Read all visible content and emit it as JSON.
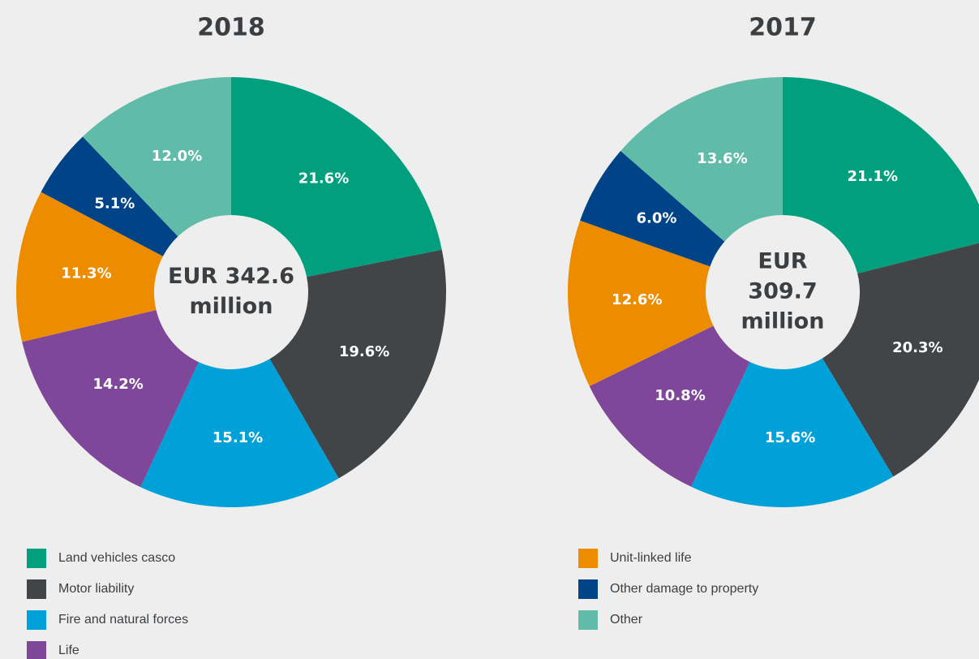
{
  "chart_data": [
    {
      "type": "donut",
      "title": "2018",
      "center_label": [
        "EUR 342.6",
        "million"
      ],
      "categories": [
        "Land vehicles casco",
        "Motor liability",
        "Fire and natural forces",
        "Life",
        "Unit-linked life",
        "Other damage to property",
        "Other"
      ],
      "values": [
        21.6,
        19.6,
        15.1,
        14.2,
        11.3,
        5.1,
        12.0
      ],
      "value_labels": [
        "21.6%",
        "19.6%",
        "15.1%",
        "14.2%",
        "11.3%",
        "5.1%",
        "12.0%"
      ],
      "colors": [
        "#00a07e",
        "#424548",
        "#00a0d8",
        "#7f479a",
        "#ee8c00",
        "#004487",
        "#60bba8"
      ]
    },
    {
      "type": "donut",
      "title": "2017",
      "center_label": [
        "EUR",
        "309.7",
        "million"
      ],
      "categories": [
        "Land vehicles casco",
        "Motor liability",
        "Fire and natural forces",
        "Life",
        "Unit-linked life",
        "Other damage to property",
        "Other"
      ],
      "values": [
        21.1,
        20.3,
        15.6,
        10.8,
        12.6,
        6.0,
        13.6
      ],
      "value_labels": [
        "21.1%",
        "20.3%",
        "15.6%",
        "10.8%",
        "12.6%",
        "6.0%",
        "13.6%"
      ],
      "colors": [
        "#00a07e",
        "#424548",
        "#00a0d8",
        "#7f479a",
        "#ee8c00",
        "#004487",
        "#60bba8"
      ]
    }
  ]
}
